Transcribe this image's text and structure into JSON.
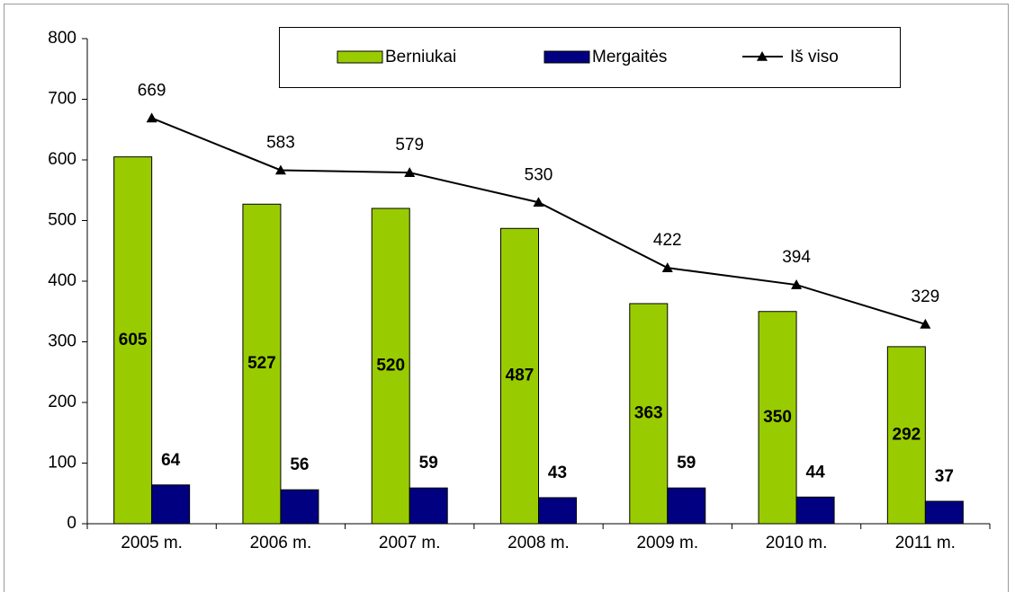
{
  "chart_data": {
    "type": "bar",
    "categories": [
      "2005 m.",
      "2006 m.",
      "2007 m.",
      "2008 m.",
      "2009 m.",
      "2010 m.",
      "2011 m."
    ],
    "series": [
      {
        "name": "Berniukai",
        "color": "#99cc00",
        "values": [
          605,
          527,
          520,
          487,
          363,
          350,
          292
        ]
      },
      {
        "name": "Mergaitės",
        "color": "#000080",
        "values": [
          64,
          56,
          59,
          43,
          59,
          44,
          37
        ]
      },
      {
        "name": "Iš viso",
        "type": "line",
        "color": "#000000",
        "values": [
          669,
          583,
          579,
          530,
          422,
          394,
          329
        ]
      }
    ],
    "ylim": [
      0,
      800
    ],
    "yticks": [
      0,
      100,
      200,
      300,
      400,
      500,
      600,
      700,
      800
    ],
    "legend": "top"
  }
}
